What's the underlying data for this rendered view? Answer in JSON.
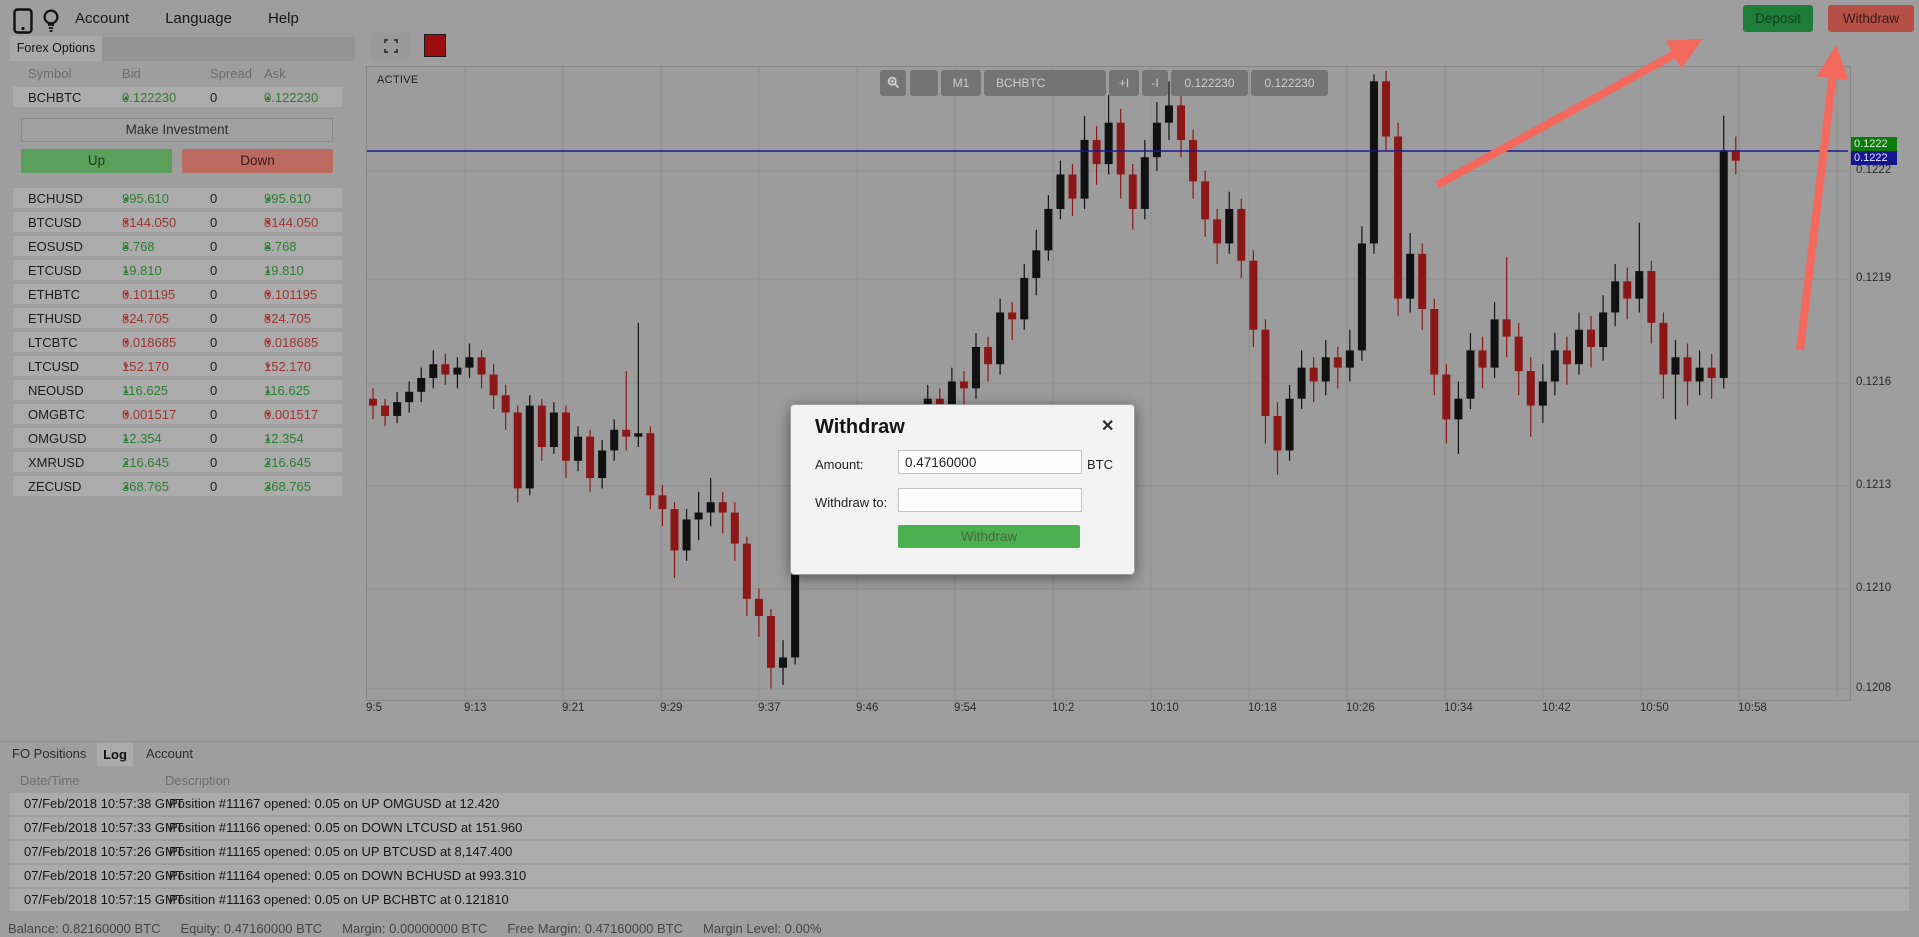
{
  "colors": {
    "page_bg": "#9e9e9e",
    "row_bg": "#ababab",
    "chart_bg": "#9c9c9c",
    "grid": "#8e8e8e",
    "candle_up": "#111111",
    "candle_down": "#8c1717",
    "price_line": "#1b1b8e",
    "badge_ask_bg": "#0b7c0b",
    "badge_bid_bg": "#15158f",
    "arrow": "#f4695e",
    "deposit_bg": "#1e7e37",
    "withdraw_bg": "#b55046",
    "up_btn_bg": "#5aa05a",
    "down_btn_bg": "#bb6a5f",
    "modal_btn_bg": "#4cb050",
    "value_up": "#2e7d32",
    "value_down": "#9c3530"
  },
  "top_bar": {
    "icons": [
      "phone-icon",
      "lightbulb-icon"
    ],
    "menu": [
      "Account",
      "Language",
      "Help"
    ],
    "deposit_label": "Deposit",
    "withdraw_label": "Withdraw"
  },
  "left_panel": {
    "tab": "Forex Options",
    "columns": [
      "Symbol",
      "Bid",
      "Spread",
      "Ask"
    ],
    "featured": {
      "symbol": "BCHBTC",
      "bid": "0.122230",
      "spread": "0",
      "ask": "0.122230",
      "dir": "up"
    },
    "make_investment_label": "Make Investment",
    "up_label": "Up",
    "down_label": "Down",
    "rows": [
      {
        "symbol": "BCHUSD",
        "bid": "995.610",
        "spread": "0",
        "ask": "995.610",
        "dir": "up"
      },
      {
        "symbol": "BTCUSD",
        "bid": "8144.050",
        "spread": "0",
        "ask": "8144.050",
        "dir": "down"
      },
      {
        "symbol": "EOSUSD",
        "bid": "8.768",
        "spread": "0",
        "ask": "8.768",
        "dir": "up"
      },
      {
        "symbol": "ETCUSD",
        "bid": "19.810",
        "spread": "0",
        "ask": "19.810",
        "dir": "up"
      },
      {
        "symbol": "ETHBTC",
        "bid": "0.101195",
        "spread": "0",
        "ask": "0.101195",
        "dir": "down"
      },
      {
        "symbol": "ETHUSD",
        "bid": "824.705",
        "spread": "0",
        "ask": "824.705",
        "dir": "down"
      },
      {
        "symbol": "LTCBTC",
        "bid": "0.018685",
        "spread": "0",
        "ask": "0.018685",
        "dir": "down"
      },
      {
        "symbol": "LTCUSD",
        "bid": "152.170",
        "spread": "0",
        "ask": "152.170",
        "dir": "down"
      },
      {
        "symbol": "NEOUSD",
        "bid": "116.625",
        "spread": "0",
        "ask": "116.625",
        "dir": "up"
      },
      {
        "symbol": "OMGBTC",
        "bid": "0.001517",
        "spread": "0",
        "ask": "0.001517",
        "dir": "down"
      },
      {
        "symbol": "OMGUSD",
        "bid": "12.354",
        "spread": "0",
        "ask": "12.354",
        "dir": "up"
      },
      {
        "symbol": "XMRUSD",
        "bid": "216.645",
        "spread": "0",
        "ask": "216.645",
        "dir": "up"
      },
      {
        "symbol": "ZECUSD",
        "bid": "368.765",
        "spread": "0",
        "ask": "368.765",
        "dir": "up"
      }
    ]
  },
  "chart": {
    "active_label": "ACTIVE",
    "toolbar": {
      "zoom_icon": "magnifier-icon",
      "timeframe": "M1",
      "symbol": "BCHBTC",
      "indicator_add": "+I",
      "indicator_remove": "-I",
      "bid": "0.122230",
      "ask": "0.122230"
    },
    "badges": {
      "ask": "0.1222",
      "bid": "0.1222",
      "last": "0.1222"
    }
  },
  "chart_data": {
    "type": "candlestick",
    "title": "BCHBTC M1",
    "symbol": "BCHBTC",
    "timeframe": "M1",
    "x_labels": [
      "9:5",
      "9:13",
      "9:21",
      "9:29",
      "9:37",
      "9:46",
      "9:54",
      "10:2",
      "10:10",
      "10:18",
      "10:26",
      "10:34",
      "10:42",
      "10:50",
      "10:58"
    ],
    "y_ticks": [
      0.1222,
      0.1219,
      0.1216,
      0.1213,
      0.121,
      0.1208
    ],
    "ylim": [
      0.1207,
      0.1225
    ],
    "grid": true,
    "current_price": 0.12223,
    "current_price_line": true,
    "candles_format": [
      "open",
      "close",
      "low",
      "high"
    ],
    "candles": [
      [
        0.12154,
        0.12152,
        0.12148,
        0.12157
      ],
      [
        0.12152,
        0.12149,
        0.12146,
        0.12154
      ],
      [
        0.12149,
        0.12153,
        0.12147,
        0.12156
      ],
      [
        0.12153,
        0.12156,
        0.1215,
        0.12159
      ],
      [
        0.12156,
        0.1216,
        0.12153,
        0.12163
      ],
      [
        0.1216,
        0.12164,
        0.12157,
        0.12168
      ],
      [
        0.12164,
        0.12161,
        0.12158,
        0.12167
      ],
      [
        0.12161,
        0.12163,
        0.12157,
        0.12166
      ],
      [
        0.12163,
        0.12166,
        0.1216,
        0.1217
      ],
      [
        0.12166,
        0.12161,
        0.12157,
        0.12168
      ],
      [
        0.12161,
        0.12155,
        0.12151,
        0.12164
      ],
      [
        0.12155,
        0.1215,
        0.12145,
        0.12158
      ],
      [
        0.1215,
        0.12128,
        0.12124,
        0.12152
      ],
      [
        0.12128,
        0.12152,
        0.12126,
        0.12155
      ],
      [
        0.12152,
        0.1214,
        0.12136,
        0.12154
      ],
      [
        0.1214,
        0.1215,
        0.12138,
        0.12153
      ],
      [
        0.1215,
        0.12136,
        0.12131,
        0.12152
      ],
      [
        0.12136,
        0.12143,
        0.12133,
        0.12146
      ],
      [
        0.12143,
        0.12131,
        0.12127,
        0.12145
      ],
      [
        0.12131,
        0.12139,
        0.12128,
        0.12142
      ],
      [
        0.12139,
        0.12145,
        0.12136,
        0.12148
      ],
      [
        0.12145,
        0.12143,
        0.12139,
        0.12162
      ],
      [
        0.12143,
        0.12144,
        0.1214,
        0.12176
      ],
      [
        0.12144,
        0.12126,
        0.12122,
        0.12146
      ],
      [
        0.12126,
        0.12122,
        0.12117,
        0.12129
      ],
      [
        0.12122,
        0.1211,
        0.12102,
        0.12124
      ],
      [
        0.1211,
        0.12119,
        0.12107,
        0.12122
      ],
      [
        0.12119,
        0.12121,
        0.12113,
        0.12127
      ],
      [
        0.12121,
        0.12124,
        0.12117,
        0.12131
      ],
      [
        0.12124,
        0.12121,
        0.12115,
        0.12127
      ],
      [
        0.12121,
        0.12112,
        0.12107,
        0.12124
      ],
      [
        0.12112,
        0.12096,
        0.12091,
        0.12114
      ],
      [
        0.12096,
        0.12091,
        0.12085,
        0.12099
      ],
      [
        0.12091,
        0.12076,
        0.1207,
        0.12093
      ],
      [
        0.12076,
        0.12079,
        0.12071,
        0.12084
      ],
      [
        0.12079,
        0.12114,
        0.12077,
        0.12118
      ],
      [
        0.12114,
        0.1212,
        0.1211,
        0.12124
      ],
      [
        0.1212,
        0.12117,
        0.12112,
        0.12123
      ],
      [
        0.12117,
        0.12124,
        0.12114,
        0.12128
      ],
      [
        0.12124,
        0.12121,
        0.12116,
        0.12127
      ],
      [
        0.12121,
        0.12129,
        0.12118,
        0.12133
      ],
      [
        0.12129,
        0.12127,
        0.12122,
        0.12132
      ],
      [
        0.12127,
        0.12134,
        0.12124,
        0.12138
      ],
      [
        0.12134,
        0.12131,
        0.12126,
        0.1215
      ],
      [
        0.12131,
        0.12139,
        0.12128,
        0.12143
      ],
      [
        0.12139,
        0.12147,
        0.12136,
        0.12151
      ],
      [
        0.12147,
        0.12154,
        0.12144,
        0.12158
      ],
      [
        0.12154,
        0.1215,
        0.12145,
        0.12157
      ],
      [
        0.1215,
        0.12159,
        0.12147,
        0.12163
      ],
      [
        0.12159,
        0.12157,
        0.12152,
        0.12162
      ],
      [
        0.12157,
        0.12169,
        0.12154,
        0.12173
      ],
      [
        0.12169,
        0.12164,
        0.12159,
        0.12172
      ],
      [
        0.12164,
        0.12179,
        0.12161,
        0.12183
      ],
      [
        0.12179,
        0.12177,
        0.12171,
        0.12182
      ],
      [
        0.12177,
        0.12189,
        0.12174,
        0.12193
      ],
      [
        0.12189,
        0.12197,
        0.12184,
        0.12203
      ],
      [
        0.12197,
        0.12209,
        0.12194,
        0.12213
      ],
      [
        0.12209,
        0.12219,
        0.12206,
        0.12223
      ],
      [
        0.12219,
        0.12212,
        0.12207,
        0.12222
      ],
      [
        0.12212,
        0.12229,
        0.12209,
        0.12236
      ],
      [
        0.12229,
        0.12222,
        0.12216,
        0.12233
      ],
      [
        0.12222,
        0.12234,
        0.12219,
        0.12242
      ],
      [
        0.12234,
        0.12219,
        0.12212,
        0.12238
      ],
      [
        0.12219,
        0.12209,
        0.12203,
        0.12222
      ],
      [
        0.12209,
        0.12224,
        0.12206,
        0.12229
      ],
      [
        0.12224,
        0.12234,
        0.1222,
        0.1224
      ],
      [
        0.12234,
        0.12239,
        0.12229,
        0.12246
      ],
      [
        0.12239,
        0.12229,
        0.12224,
        0.12243
      ],
      [
        0.12229,
        0.12217,
        0.12212,
        0.12232
      ],
      [
        0.12217,
        0.12206,
        0.12201,
        0.1222
      ],
      [
        0.12206,
        0.12199,
        0.12193,
        0.12209
      ],
      [
        0.12199,
        0.12209,
        0.12196,
        0.12214
      ],
      [
        0.12209,
        0.12194,
        0.12189,
        0.12212
      ],
      [
        0.12194,
        0.12174,
        0.12169,
        0.12197
      ],
      [
        0.12174,
        0.12149,
        0.12141,
        0.12177
      ],
      [
        0.12149,
        0.12139,
        0.12132,
        0.12153
      ],
      [
        0.12139,
        0.12154,
        0.12136,
        0.12158
      ],
      [
        0.12154,
        0.12163,
        0.12151,
        0.12168
      ],
      [
        0.12163,
        0.12159,
        0.12153,
        0.12166
      ],
      [
        0.12159,
        0.12166,
        0.12155,
        0.12171
      ],
      [
        0.12166,
        0.12163,
        0.12157,
        0.12169
      ],
      [
        0.12163,
        0.12168,
        0.12159,
        0.12174
      ],
      [
        0.12168,
        0.12199,
        0.12165,
        0.12204
      ],
      [
        0.12199,
        0.12246,
        0.12196,
        0.12248
      ],
      [
        0.12246,
        0.1223,
        0.12226,
        0.12249
      ],
      [
        0.1223,
        0.12183,
        0.12178,
        0.12234
      ],
      [
        0.12183,
        0.12196,
        0.12179,
        0.12202
      ],
      [
        0.12196,
        0.1218,
        0.12174,
        0.12199
      ],
      [
        0.1218,
        0.12161,
        0.12155,
        0.12183
      ],
      [
        0.12161,
        0.12148,
        0.12141,
        0.12164
      ],
      [
        0.12148,
        0.12154,
        0.12138,
        0.12159
      ],
      [
        0.12154,
        0.12168,
        0.12151,
        0.12173
      ],
      [
        0.12168,
        0.12163,
        0.12157,
        0.12172
      ],
      [
        0.12163,
        0.12177,
        0.1216,
        0.12182
      ],
      [
        0.12177,
        0.12172,
        0.12166,
        0.12195
      ],
      [
        0.12172,
        0.12162,
        0.12155,
        0.12176
      ],
      [
        0.12162,
        0.12152,
        0.12143,
        0.12166
      ],
      [
        0.12152,
        0.12159,
        0.12147,
        0.12164
      ],
      [
        0.12159,
        0.12168,
        0.12155,
        0.12173
      ],
      [
        0.12168,
        0.12164,
        0.12158,
        0.12172
      ],
      [
        0.12164,
        0.12174,
        0.12161,
        0.12179
      ],
      [
        0.12174,
        0.12169,
        0.12163,
        0.12178
      ],
      [
        0.12169,
        0.12179,
        0.12165,
        0.12184
      ],
      [
        0.12179,
        0.12188,
        0.12175,
        0.12193
      ],
      [
        0.12188,
        0.12183,
        0.12177,
        0.12192
      ],
      [
        0.12183,
        0.12191,
        0.12179,
        0.12205
      ],
      [
        0.12191,
        0.12176,
        0.1217,
        0.12194
      ],
      [
        0.12176,
        0.12161,
        0.12154,
        0.12179
      ],
      [
        0.12161,
        0.12166,
        0.12148,
        0.12171
      ],
      [
        0.12166,
        0.12159,
        0.12152,
        0.1217
      ],
      [
        0.12159,
        0.12163,
        0.12155,
        0.12168
      ],
      [
        0.12163,
        0.1216,
        0.12154,
        0.12167
      ],
      [
        0.1216,
        0.12226,
        0.12157,
        0.12236
      ],
      [
        0.12226,
        0.12223,
        0.12219,
        0.1223
      ]
    ]
  },
  "modal": {
    "title": "Withdraw",
    "close_icon": "✕",
    "amount_label": "Amount:",
    "amount_value": "0.47160000",
    "currency": "BTC",
    "withdraw_to_label": "Withdraw to:",
    "withdraw_to_value": "",
    "button_label": "Withdraw"
  },
  "bottom_panel": {
    "tabs": [
      "FO Positions",
      "Log",
      "Account"
    ],
    "active_tab": "Log",
    "columns": [
      "Date/Time",
      "Description"
    ],
    "rows": [
      {
        "datetime": "07/Feb/2018 10:57:38 GMT",
        "description": "Position #11167 opened: 0.05 on UP OMGUSD at 12.420"
      },
      {
        "datetime": "07/Feb/2018 10:57:33 GMT",
        "description": "Position #11166 opened: 0.05 on DOWN LTCUSD at 151.960"
      },
      {
        "datetime": "07/Feb/2018 10:57:26 GMT",
        "description": "Position #11165 opened: 0.05 on UP BTCUSD at 8,147.400"
      },
      {
        "datetime": "07/Feb/2018 10:57:20 GMT",
        "description": "Position #11164 opened: 0.05 on DOWN BCHUSD at 993.310"
      },
      {
        "datetime": "07/Feb/2018 10:57:15 GMT",
        "description": "Position #11163 opened: 0.05 on UP BCHBTC at 0.121810"
      }
    ]
  },
  "status_bar": {
    "fields": [
      {
        "label": "Balance:",
        "value": "0.82160000 BTC"
      },
      {
        "label": "Equity:",
        "value": "0.47160000 BTC"
      },
      {
        "label": "Margin:",
        "value": "0.00000000 BTC"
      },
      {
        "label": "Free Margin:",
        "value": "0.47160000 BTC"
      },
      {
        "label": "Margin Level:",
        "value": "0.00%"
      }
    ]
  },
  "annotations": {
    "arrows": [
      {
        "name": "annotation-arrow-deposit",
        "from": [
          1437,
          185
        ],
        "to": [
          1693,
          44
        ]
      },
      {
        "name": "annotation-arrow-withdraw",
        "from": [
          1800,
          350
        ],
        "to": [
          1835,
          56
        ]
      }
    ]
  }
}
